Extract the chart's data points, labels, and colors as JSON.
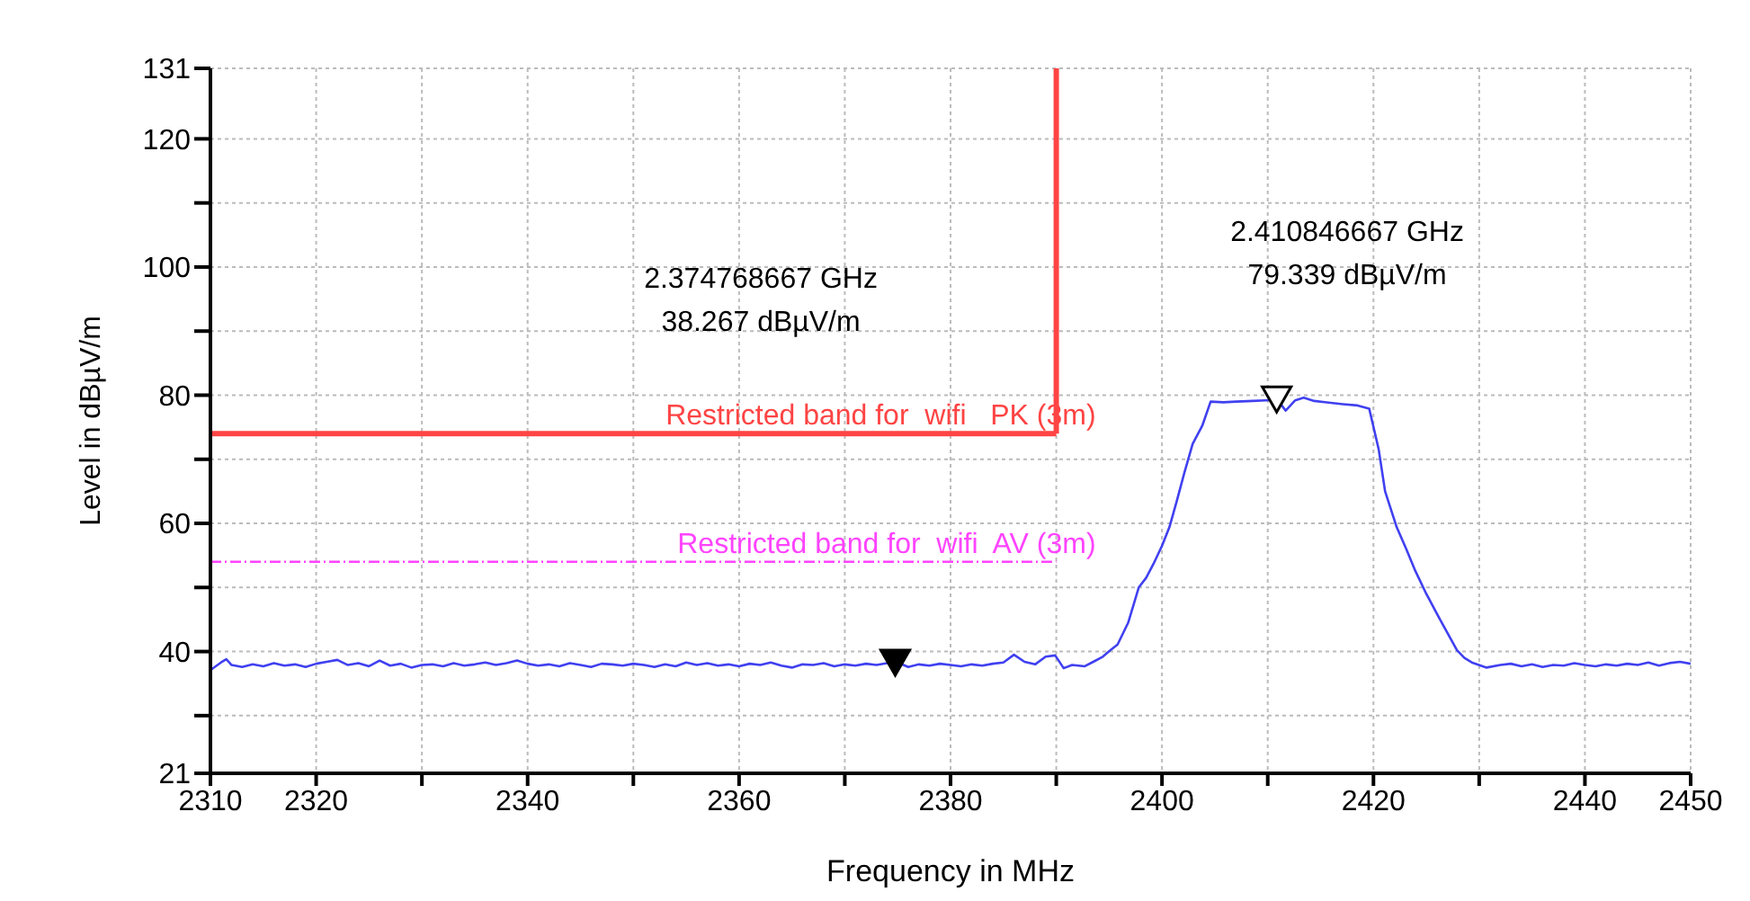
{
  "chart_data": {
    "type": "line",
    "xlabel": "Frequency in MHz",
    "ylabel": "Level in dBµV/m",
    "xlim": [
      2310,
      2450
    ],
    "ylim": [
      21,
      131
    ],
    "xticks": [
      2310,
      2320,
      {
        "value": 2330,
        "label": null
      },
      2340,
      {
        "value": 2350,
        "label": null
      },
      2360,
      {
        "value": 2370,
        "label": null
      },
      2380,
      {
        "value": 2390,
        "label": null
      },
      2400,
      {
        "value": 2410,
        "label": null
      },
      2420,
      {
        "value": 2430,
        "label": null
      },
      2440,
      2450
    ],
    "yticks": [
      21,
      {
        "value": 30,
        "label": null
      },
      40,
      {
        "value": 50,
        "label": null
      },
      60,
      {
        "value": 70,
        "label": null
      },
      80,
      {
        "value": 90,
        "label": null
      },
      100,
      {
        "value": 110,
        "label": null
      },
      120,
      131
    ],
    "grid": true,
    "marker": "none",
    "line_style": "solid",
    "series": [
      {
        "color": "#4040f0",
        "x": [
          2310,
          2311,
          2311.5,
          2312,
          2313,
          2314,
          2315,
          2316,
          2317,
          2318,
          2319,
          2320,
          2321,
          2322,
          2323,
          2324,
          2325,
          2326,
          2327,
          2328,
          2329,
          2330,
          2331,
          2332,
          2333,
          2334,
          2335,
          2336,
          2337,
          2338,
          2339,
          2340,
          2341,
          2342,
          2343,
          2344,
          2345,
          2346,
          2347,
          2348,
          2349,
          2350,
          2351,
          2352,
          2353,
          2354,
          2355,
          2356,
          2357,
          2358,
          2359,
          2360,
          2361,
          2362,
          2363,
          2364,
          2365,
          2366,
          2367,
          2368,
          2369,
          2370,
          2371,
          2372,
          2373,
          2374,
          2375,
          2376,
          2377,
          2378,
          2379,
          2380,
          2381,
          2382,
          2383,
          2384,
          2385,
          2386,
          2387,
          2388,
          2389,
          2389.9,
          2390.7,
          2391.5,
          2392.7,
          2393.5,
          2394.4,
          2395.1,
          2395.8,
          2396.8,
          2397.8,
          2398.5,
          2399.2,
          2400,
          2400.7,
          2401.4,
          2402.1,
          2402.9,
          2403.8,
          2404.6,
          2405.8,
          2407,
          2408.6,
          2409.8,
          2410.9,
          2411.7,
          2412.6,
          2413.4,
          2414.4,
          2415.4,
          2417.1,
          2418.5,
          2419.6,
          2420.5,
          2421.1,
          2422.2,
          2423.1,
          2423.9,
          2425,
          2426.2,
          2427.9,
          2428.6,
          2429.3,
          2430.7,
          2432,
          2433,
          2434,
          2435,
          2436,
          2437,
          2438,
          2439,
          2440,
          2441,
          2442,
          2443,
          2444,
          2445,
          2446,
          2447,
          2448,
          2449,
          2450
        ],
        "values": [
          37.1,
          38.3,
          38.8,
          37.9,
          37.6,
          38.0,
          37.7,
          38.2,
          37.8,
          38.0,
          37.6,
          38.1,
          38.4,
          38.7,
          37.9,
          38.2,
          37.7,
          38.6,
          37.8,
          38.1,
          37.5,
          37.9,
          38.0,
          37.7,
          38.2,
          37.8,
          38.0,
          38.3,
          37.9,
          38.2,
          38.6,
          38.1,
          37.8,
          38.0,
          37.7,
          38.2,
          37.9,
          37.6,
          38.1,
          38.0,
          37.8,
          38.1,
          37.9,
          37.6,
          38.0,
          37.7,
          38.3,
          37.9,
          38.2,
          37.8,
          38.0,
          37.7,
          38.1,
          37.9,
          38.3,
          37.8,
          37.5,
          38.0,
          37.9,
          38.2,
          37.7,
          38.0,
          37.8,
          38.1,
          37.9,
          38.2,
          38.3,
          37.6,
          38.0,
          37.8,
          38.1,
          37.9,
          37.7,
          38.0,
          37.8,
          38.1,
          38.3,
          39.5,
          38.4,
          38.0,
          39.2,
          39.4,
          37.4,
          37.9,
          37.7,
          38.4,
          39.2,
          40.2,
          41.1,
          44.5,
          50.0,
          51.5,
          53.7,
          56.5,
          59.4,
          63.5,
          67.8,
          72.4,
          75.2,
          79.0,
          78.9,
          79.0,
          79.1,
          79.2,
          79.3,
          77.6,
          79.2,
          79.6,
          79.1,
          78.9,
          78.6,
          78.4,
          77.9,
          71.5,
          65.0,
          59.4,
          56.0,
          52.8,
          49.0,
          45.3,
          40.2,
          39.0,
          38.3,
          37.5,
          37.9,
          38.1,
          37.7,
          38.0,
          37.6,
          37.9,
          37.8,
          38.2,
          37.9,
          37.7,
          38.0,
          37.8,
          38.1,
          37.9,
          38.3,
          37.8,
          38.2,
          38.4,
          38.1
        ]
      },
      {
        "type": "scatter",
        "marker": "triangle",
        "colors": [
          "#000000",
          "#ffffff"
        ],
        "x": [
          2374.768667,
          2410.846667
        ],
        "values": [
          38.267,
          79.339
        ]
      }
    ],
    "ref_lines": [
      {
        "axis": "y",
        "value": 74,
        "label": "Restricted band for  wifi   PK (3m)",
        "color": "#ff4444",
        "line_style": "solid"
      },
      {
        "axis": "y",
        "value": 54,
        "label": "Restricted band for  wifi  AV (3m)",
        "color": "#ff44ff",
        "line_style": "dashed"
      },
      {
        "axis": "x",
        "value": 2390,
        "label": null,
        "color": "#ff4444",
        "line_style": "solid"
      }
    ],
    "annotations": [
      "2.374768667 GHz\n38.267 dBµV/m",
      "2.410846667 GHz\n79.339 dBµV/m"
    ]
  }
}
